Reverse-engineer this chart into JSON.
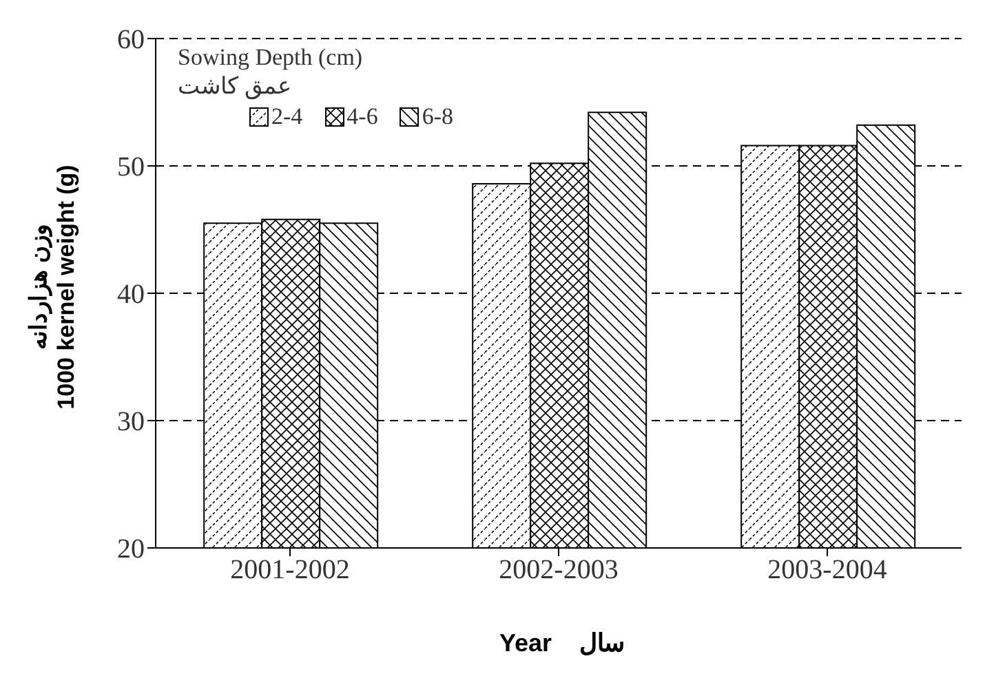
{
  "chart_data": {
    "type": "bar",
    "xlabel": "Year    سال",
    "ylabel": "وزن هزاردانه\n1000 kernel weight (g)",
    "legend_title": "Sowing Depth (cm)\nعمق کاشت",
    "categories": [
      "2001-2002",
      "2002-2003",
      "2003-2004"
    ],
    "series": [
      {
        "name": "2-4",
        "color": "#000000",
        "values": [
          45.5,
          48.6,
          51.6
        ]
      },
      {
        "name": "4-6",
        "color": "#000000",
        "values": [
          45.8,
          50.2,
          51.6
        ]
      },
      {
        "name": "6-8",
        "color": "#000000",
        "values": [
          45.5,
          54.2,
          53.2
        ]
      }
    ],
    "ylim": [
      20,
      60
    ],
    "yticks": [
      20,
      30,
      40,
      50,
      60
    ],
    "grid": "y",
    "line_style": "dashed",
    "legend": "top left"
  }
}
